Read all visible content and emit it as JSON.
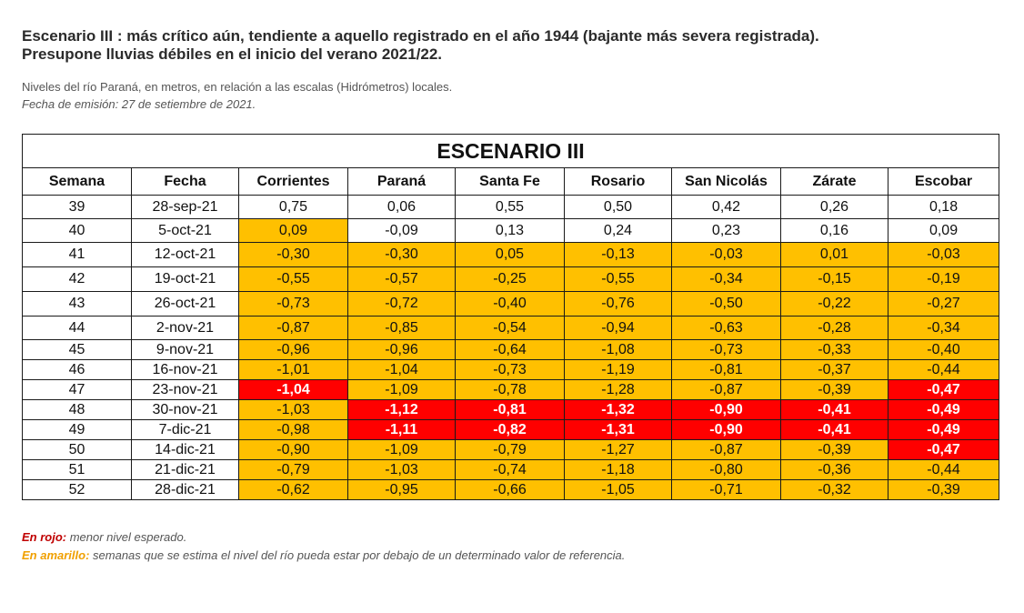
{
  "heading": {
    "line1": "Escenario III : más crítico aún, tendiente a aquello registrado en el año 1944 (bajante más severa registrada).",
    "line2": "Presupone lluvias débiles en el inicio del verano 2021/22."
  },
  "subtitle": {
    "line1": "Niveles del río Paraná, en metros, en relación a las escalas (Hidrómetros) locales.",
    "line2": "Fecha de emisión: 27 de setiembre de 2021."
  },
  "table": {
    "title": "ESCENARIO III",
    "columns": [
      "Semana",
      "Fecha",
      "Corrientes",
      "Paraná",
      "Santa Fe",
      "Rosario",
      "San Nicolás",
      "Zárate",
      "Escobar"
    ],
    "rows": [
      {
        "week": "39",
        "date": "28-sep-21",
        "values": [
          "0,75",
          "0,06",
          "0,55",
          "0,50",
          "0,42",
          "0,26",
          "0,18"
        ],
        "status": [
          "n",
          "n",
          "n",
          "n",
          "n",
          "n",
          "n"
        ]
      },
      {
        "week": "40",
        "date": "5-oct-21",
        "values": [
          "0,09",
          "-0,09",
          "0,13",
          "0,24",
          "0,23",
          "0,16",
          "0,09"
        ],
        "status": [
          "y",
          "n",
          "n",
          "n",
          "n",
          "n",
          "n"
        ]
      },
      {
        "week": "41",
        "date": "12-oct-21",
        "values": [
          "-0,30",
          "-0,30",
          "0,05",
          "-0,13",
          "-0,03",
          "0,01",
          "-0,03"
        ],
        "status": [
          "y",
          "y",
          "y",
          "y",
          "y",
          "y",
          "y"
        ]
      },
      {
        "week": "42",
        "date": "19-oct-21",
        "values": [
          "-0,55",
          "-0,57",
          "-0,25",
          "-0,55",
          "-0,34",
          "-0,15",
          "-0,19"
        ],
        "status": [
          "y",
          "y",
          "y",
          "y",
          "y",
          "y",
          "y"
        ]
      },
      {
        "week": "43",
        "date": "26-oct-21",
        "values": [
          "-0,73",
          "-0,72",
          "-0,40",
          "-0,76",
          "-0,50",
          "-0,22",
          "-0,27"
        ],
        "status": [
          "y",
          "y",
          "y",
          "y",
          "y",
          "y",
          "y"
        ]
      },
      {
        "week": "44",
        "date": "2-nov-21",
        "values": [
          "-0,87",
          "-0,85",
          "-0,54",
          "-0,94",
          "-0,63",
          "-0,28",
          "-0,34"
        ],
        "status": [
          "y",
          "y",
          "y",
          "y",
          "y",
          "y",
          "y"
        ]
      },
      {
        "week": "45",
        "date": "9-nov-21",
        "values": [
          "-0,96",
          "-0,96",
          "-0,64",
          "-1,08",
          "-0,73",
          "-0,33",
          "-0,40"
        ],
        "status": [
          "y",
          "y",
          "y",
          "y",
          "y",
          "y",
          "y"
        ]
      },
      {
        "week": "46",
        "date": "16-nov-21",
        "values": [
          "-1,01",
          "-1,04",
          "-0,73",
          "-1,19",
          "-0,81",
          "-0,37",
          "-0,44"
        ],
        "status": [
          "y",
          "y",
          "y",
          "y",
          "y",
          "y",
          "y"
        ]
      },
      {
        "week": "47",
        "date": "23-nov-21",
        "values": [
          "-1,04",
          "-1,09",
          "-0,78",
          "-1,28",
          "-0,87",
          "-0,39",
          "-0,47"
        ],
        "status": [
          "r",
          "y",
          "y",
          "y",
          "y",
          "y",
          "r"
        ]
      },
      {
        "week": "48",
        "date": "30-nov-21",
        "values": [
          "-1,03",
          "-1,12",
          "-0,81",
          "-1,32",
          "-0,90",
          "-0,41",
          "-0,49"
        ],
        "status": [
          "y",
          "r",
          "r",
          "r",
          "r",
          "r",
          "r"
        ]
      },
      {
        "week": "49",
        "date": "7-dic-21",
        "values": [
          "-0,98",
          "-1,11",
          "-0,82",
          "-1,31",
          "-0,90",
          "-0,41",
          "-0,49"
        ],
        "status": [
          "y",
          "r",
          "r",
          "r",
          "r",
          "r",
          "r"
        ]
      },
      {
        "week": "50",
        "date": "14-dic-21",
        "values": [
          "-0,90",
          "-1,09",
          "-0,79",
          "-1,27",
          "-0,87",
          "-0,39",
          "-0,47"
        ],
        "status": [
          "y",
          "y",
          "y",
          "y",
          "y",
          "y",
          "r"
        ]
      },
      {
        "week": "51",
        "date": "21-dic-21",
        "values": [
          "-0,79",
          "-1,03",
          "-0,74",
          "-1,18",
          "-0,80",
          "-0,36",
          "-0,44"
        ],
        "status": [
          "y",
          "y",
          "y",
          "y",
          "y",
          "y",
          "y"
        ]
      },
      {
        "week": "52",
        "date": "28-dic-21",
        "values": [
          "-0,62",
          "-0,95",
          "-0,66",
          "-1,05",
          "-0,71",
          "-0,32",
          "-0,39"
        ],
        "status": [
          "y",
          "y",
          "y",
          "y",
          "y",
          "y",
          "y"
        ]
      }
    ]
  },
  "legend": {
    "red_label": "En rojo:",
    "red_text": " menor nivel esperado.",
    "yellow_label": "En amarillo:",
    "yellow_text": " semanas que se estima el nivel del río pueda estar por debajo de un determinado valor de referencia."
  },
  "colors": {
    "yellow": "#ffc000",
    "red": "#ff0000"
  }
}
